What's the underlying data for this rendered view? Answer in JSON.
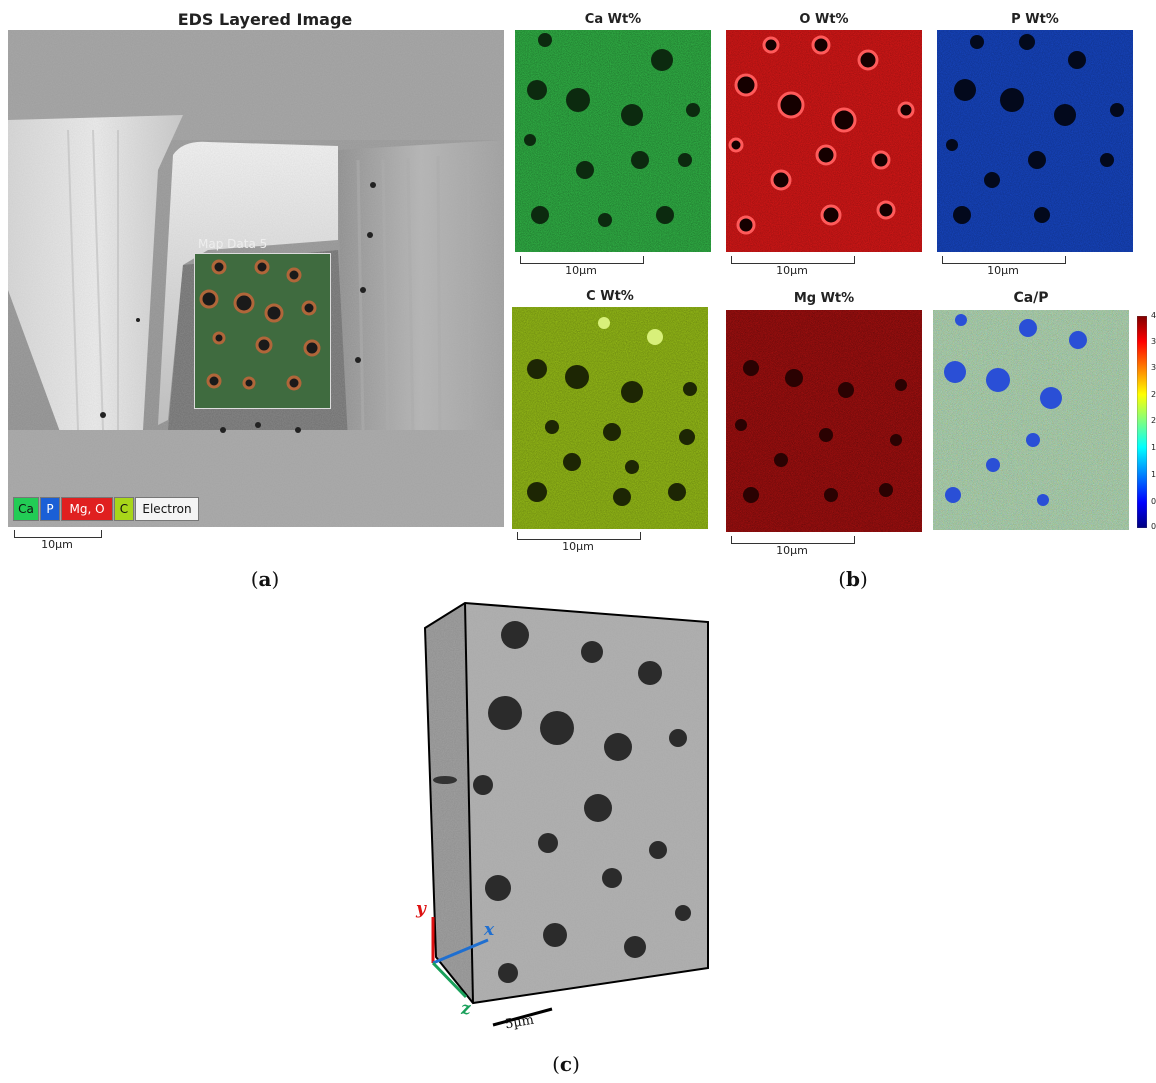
{
  "panel_a": {
    "title": "EDS Layered Image",
    "map_label": "Map Data 5",
    "scale": "10µm",
    "legend": [
      {
        "label": "Ca",
        "color": "#22cc55"
      },
      {
        "label": "P",
        "color": "#1a5fd6"
      },
      {
        "label": "Mg, O",
        "color": "#e02020"
      },
      {
        "label": "C",
        "color": "#a8d61a"
      },
      {
        "label": "Electron",
        "color": "#f4f4f4"
      }
    ],
    "caption": "a"
  },
  "panel_b": {
    "maps": [
      {
        "title": "Ca Wt%",
        "scale": "10µm",
        "color": "#2fc24a"
      },
      {
        "title": "O Wt%",
        "scale": "10µm",
        "color": "#e01818"
      },
      {
        "title": "P Wt%",
        "scale": "10µm",
        "color": "#1748c9"
      },
      {
        "title": "C Wt%",
        "scale": "10µm",
        "color": "#9cc418"
      },
      {
        "title": "Mg Wt%",
        "scale": "10µm",
        "color": "#c01212"
      },
      {
        "title": "Ca/P",
        "scale": "",
        "color": "#7fc89a"
      }
    ],
    "colorbar_ticks": [
      "4",
      "3",
      "3",
      "2",
      "2",
      "1",
      "1",
      "0",
      "0"
    ],
    "caption": "b"
  },
  "panel_c": {
    "axes": {
      "x": "x",
      "y": "y",
      "z": "z"
    },
    "axis_colors": {
      "x": "#1f6fd0",
      "y": "#dd1111",
      "z": "#19a05a"
    },
    "scale": "5µm",
    "caption": "c"
  }
}
